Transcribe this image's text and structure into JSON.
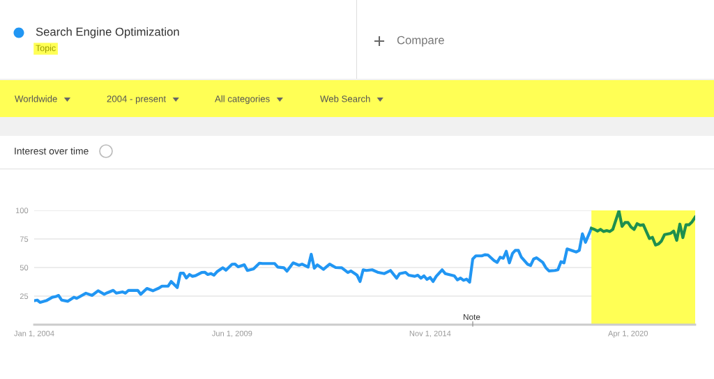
{
  "chart_data": {
    "type": "line",
    "title": "Interest over time",
    "subtitle": "Topic",
    "annotations": [
      "Compare",
      "Worldwide",
      "2004 - present",
      "All categories",
      "Web Search",
      "Note"
    ],
    "xlim": [
      "2004-01",
      "2022-02"
    ],
    "xticks": [
      {
        "value": "2004-01-01",
        "label": "Jan 1, 2004"
      },
      {
        "value": "2009-06-01",
        "label": "Jun 1, 2009"
      },
      {
        "value": "2014-11-01",
        "label": "Nov 1, 2014"
      },
      {
        "value": "2020-04-01",
        "label": "Apr 1, 2020"
      }
    ],
    "ylim": [
      0,
      100
    ],
    "yticks": [
      25,
      50,
      75,
      100
    ],
    "grid": "y",
    "legend": "top left",
    "marker": "none",
    "line_style": "solid",
    "bands": [
      {
        "axis": "x",
        "from": "2019-04",
        "to": "2022-02",
        "color": "#ffff55"
      }
    ],
    "series": [
      {
        "name": "Search Engine Optimization",
        "color": "#2196f3",
        "x": [
          "2004-01",
          "2004-02",
          "2004-03",
          "2004-05",
          "2004-07",
          "2004-08",
          "2004-09",
          "2004-10",
          "2004-12",
          "2005-02",
          "2005-03",
          "2005-06",
          "2005-08",
          "2005-10",
          "2005-12",
          "2006-01",
          "2006-03",
          "2006-04",
          "2006-06",
          "2006-07",
          "2006-08",
          "2006-11",
          "2006-12",
          "2007-02",
          "2007-04",
          "2007-06",
          "2007-07",
          "2007-09",
          "2007-10",
          "2007-12",
          "2008-01",
          "2008-02",
          "2008-03",
          "2008-04",
          "2008-05",
          "2008-06",
          "2008-08",
          "2008-09",
          "2008-10",
          "2008-11",
          "2008-12",
          "2009-01",
          "2009-03",
          "2009-04",
          "2009-06",
          "2009-07",
          "2009-08",
          "2009-10",
          "2009-11",
          "2010-01",
          "2010-03",
          "2010-04",
          "2010-08",
          "2010-09",
          "2010-11",
          "2010-12",
          "2011-02",
          "2011-04",
          "2011-05",
          "2011-07",
          "2011-08",
          "2011-09",
          "2011-10",
          "2011-12",
          "2012-02",
          "2012-04",
          "2012-06",
          "2012-08",
          "2012-09",
          "2012-11",
          "2012-12",
          "2013-01",
          "2013-02",
          "2013-04",
          "2013-06",
          "2013-08",
          "2013-10",
          "2013-12",
          "2014-01",
          "2014-03",
          "2014-04",
          "2014-06",
          "2014-07",
          "2014-08",
          "2014-09",
          "2014-10",
          "2014-11",
          "2014-12",
          "2015-01",
          "2015-03",
          "2015-04",
          "2015-07",
          "2015-08",
          "2015-09",
          "2015-10",
          "2015-11",
          "2015-12",
          "2016-01",
          "2016-02",
          "2016-04",
          "2016-05",
          "2016-06",
          "2016-08",
          "2016-09",
          "2016-10",
          "2016-11",
          "2016-12",
          "2017-01",
          "2017-02",
          "2017-03",
          "2017-04",
          "2017-05",
          "2017-07",
          "2017-08",
          "2017-09",
          "2017-10",
          "2017-12",
          "2018-01",
          "2018-02",
          "2018-04",
          "2018-05",
          "2018-06",
          "2018-07",
          "2018-08",
          "2018-11",
          "2018-12",
          "2019-01",
          "2019-02",
          "2019-04"
        ],
        "values": [
          21,
          21.5,
          19.5,
          21,
          24,
          24.5,
          25.6,
          21.5,
          20.5,
          24,
          23,
          27.5,
          25.6,
          29.7,
          26.6,
          27.9,
          30,
          27.6,
          28.7,
          27.6,
          30,
          30,
          26.6,
          31.7,
          29.7,
          32,
          33.7,
          33.7,
          37.8,
          32.5,
          45,
          45,
          40.8,
          43.9,
          42.3,
          42.9,
          45.7,
          45.9,
          43.9,
          44.7,
          43.3,
          46.3,
          49.8,
          47.7,
          52.9,
          53,
          50.6,
          52.4,
          47.4,
          48.8,
          53.8,
          53.5,
          53.5,
          50.4,
          49.8,
          46.8,
          54.1,
          52,
          53,
          50.4,
          61.6,
          49.4,
          52.4,
          48.4,
          53,
          50,
          49.8,
          45.7,
          47,
          43.3,
          37.8,
          48,
          47.4,
          48,
          45.7,
          44.7,
          47.4,
          40.7,
          44.7,
          45.7,
          43.3,
          42.3,
          43.3,
          40.7,
          42.7,
          39.6,
          41.3,
          37.8,
          42.3,
          48,
          44.7,
          42.7,
          39.2,
          40.8,
          38.8,
          39.8,
          37.2,
          57.5,
          60.2,
          60.2,
          61.2,
          61,
          56.1,
          54.5,
          59,
          58.1,
          64.2,
          54.1,
          62.2,
          65,
          65,
          59,
          52.9,
          51.8,
          57.5,
          58.5,
          54.5,
          49.8,
          47,
          47.4,
          48,
          55.1,
          54.1,
          66.3,
          63.6,
          65,
          79.5,
          72.1,
          84.3
        ]
      },
      {
        "color": "#1e8f4e",
        "x": [
          "2019-04",
          "2019-05",
          "2019-06",
          "2019-07",
          "2019-08",
          "2019-09",
          "2019-10",
          "2019-11",
          "2020-01",
          "2020-02",
          "2020-03",
          "2020-04",
          "2020-05",
          "2020-06",
          "2020-07",
          "2020-08",
          "2020-09",
          "2020-11",
          "2020-12",
          "2021-01",
          "2021-02",
          "2021-03",
          "2021-04",
          "2021-06",
          "2021-07",
          "2021-08",
          "2021-09",
          "2021-10",
          "2021-11",
          "2021-12",
          "2022-01",
          "2022-02"
        ],
        "values": [
          84.3,
          83.4,
          81.9,
          83.4,
          81.5,
          82.3,
          81.5,
          83.4,
          99.6,
          86,
          89.4,
          89.4,
          85.4,
          83.4,
          88.4,
          87,
          87.4,
          75.4,
          76.4,
          69.7,
          70.7,
          73.2,
          78.8,
          79.9,
          81.9,
          73.8,
          88,
          76.2,
          87.4,
          87.4,
          90,
          94.1
        ]
      }
    ]
  }
}
